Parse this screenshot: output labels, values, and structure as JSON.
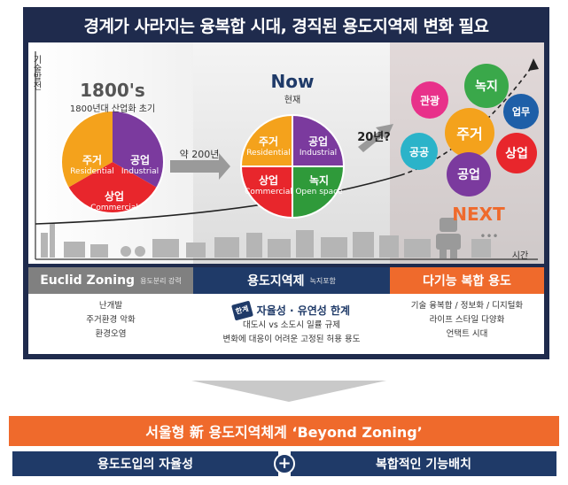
{
  "title": "경계가 사라지는 융복합 시대, 경직된 용도지역제 변화 필요",
  "axis": {
    "y": "기술발전",
    "x": "시간"
  },
  "era1800": {
    "title": "1800's",
    "subtitle": "1800년대 산업화 초기",
    "segments": [
      {
        "ko": "주거",
        "en": "Residential",
        "color": "#f4a21c"
      },
      {
        "ko": "공업",
        "en": "Industrial",
        "color": "#7b3a9e"
      },
      {
        "ko": "상업",
        "en": "Commercial",
        "color": "#e8262c"
      }
    ]
  },
  "arrow1": "약 200년",
  "now": {
    "title": "Now",
    "subtitle": "현재",
    "segments": [
      {
        "ko": "주거",
        "en": "Residential",
        "color": "#f4a21c"
      },
      {
        "ko": "공업",
        "en": "Industrial",
        "color": "#7b3a9e"
      },
      {
        "ko": "상업",
        "en": "Commercial",
        "color": "#e8262c"
      },
      {
        "ko": "녹지",
        "en": "Open space",
        "color": "#2f9a3a"
      }
    ]
  },
  "arrow2": "20년?",
  "next": {
    "title": "NEXT",
    "bubbles": [
      {
        "label": "관광",
        "color": "#e8318a"
      },
      {
        "label": "녹지",
        "color": "#3aa84a"
      },
      {
        "label": "업무",
        "color": "#1e5fa8"
      },
      {
        "label": "공공",
        "color": "#2bb3c9"
      },
      {
        "label": "주거",
        "color": "#f4a21c"
      },
      {
        "label": "상업",
        "color": "#e8262c"
      },
      {
        "label": "공업",
        "color": "#7b3a9e"
      }
    ],
    "dots": "•••"
  },
  "columns": [
    {
      "title": "Euclid Zoning",
      "note": "용도분리 강력",
      "color": "#808080",
      "lines": [
        "난개발",
        "주거환경 악화",
        "환경오염"
      ]
    },
    {
      "title": "용도지역제",
      "note": "녹지포함",
      "color": "#1f3a68",
      "tag": "한계",
      "headline": "자율성 · 유연성 한계",
      "lines": [
        "대도시 vs 소도시 일률 규제",
        "변화에 대응이 어려운 고정된 허용 용도"
      ]
    },
    {
      "title": "다기능 복합 용도",
      "note": "",
      "color": "#ef6a2c",
      "lines": [
        "기술 융복합 / 정보화 / 디지털화",
        "라이프 스타일 다양화",
        "언택트 시대"
      ]
    }
  ],
  "bottom": {
    "banner": "서울형 新 용도지역체계 ‘Beyond Zoning’",
    "left": "용도도입의 자율성",
    "plus": "+",
    "right": "복합적인 기능배치"
  }
}
